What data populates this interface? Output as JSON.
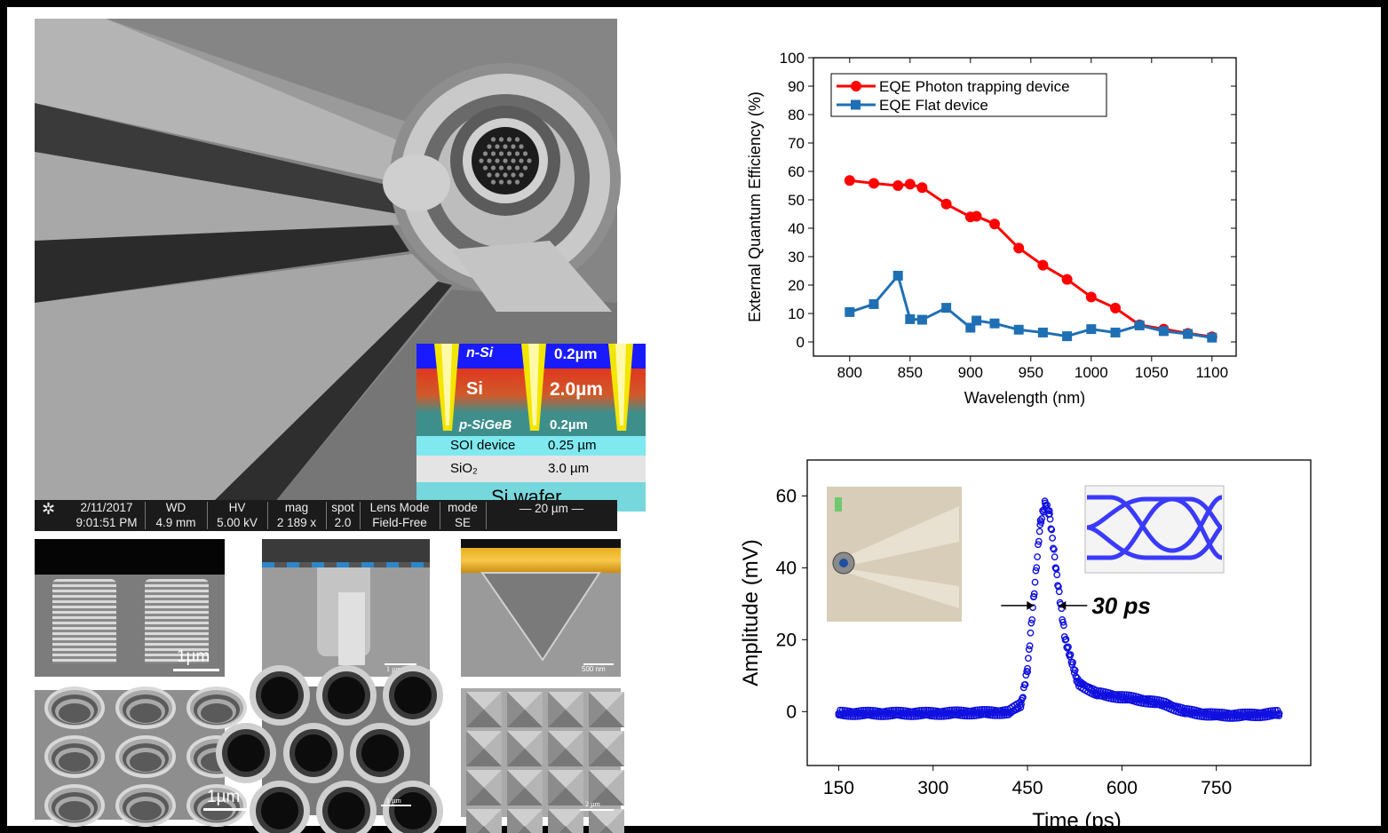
{
  "sem_main": {
    "info_date": "2/11/2017",
    "info_time": "9:01:51 PM",
    "wd_label": "WD",
    "wd_value": "4.9 mm",
    "hv_label": "HV",
    "hv_value": "5.00 kV",
    "mag_label": "mag",
    "mag_value": "2 189 x",
    "spot_label": "spot",
    "spot_value": "2.0",
    "lens_label": "Lens Mode",
    "lens_value": "Field-Free",
    "mode_label": "mode",
    "mode_value": "SE",
    "scale": "20 µm"
  },
  "layer_stack": [
    {
      "name": "n-Si",
      "thickness": "0.2µm",
      "color": "#1a1aff"
    },
    {
      "name": "Si",
      "thickness": "2.0µm",
      "color": "#d94a2a"
    },
    {
      "name": "p-SiGeB",
      "thickness": "0.2µm",
      "color": "#3e8f8c"
    },
    {
      "name": "SOI device",
      "thickness": "0.25 µm",
      "color": "#7fe9ef"
    },
    {
      "name": "SiO₂",
      "thickness": "3.0 µm",
      "color": "#e4e4e4"
    },
    {
      "name": "Si wafer",
      "thickness": "",
      "color": "#76d8dc"
    }
  ],
  "thumbnails": [
    {
      "scale": "1µm"
    },
    {
      "scale": "1 µm"
    },
    {
      "scale": "500 nm"
    },
    {
      "scale": "1µm"
    },
    {
      "scale": "1 µm"
    },
    {
      "scale": "2 µm"
    }
  ],
  "chart_data": [
    {
      "type": "line",
      "xlabel": "Wavelength (nm)",
      "ylabel": "External Quantum Efficiency (%)",
      "xlim": [
        770,
        1120
      ],
      "ylim": [
        -5,
        100
      ],
      "xticks": [
        800,
        850,
        900,
        950,
        1000,
        1050,
        1100
      ],
      "yticks": [
        0,
        10,
        20,
        30,
        40,
        50,
        60,
        70,
        80,
        90,
        100
      ],
      "legend_position": "top-left",
      "series": [
        {
          "name": "EQE Photon trapping device",
          "color": "#ff0000",
          "marker": "circle",
          "x": [
            800,
            820,
            840,
            850,
            860,
            880,
            900,
            905,
            920,
            940,
            960,
            980,
            1000,
            1020,
            1040,
            1060,
            1080,
            1100
          ],
          "y": [
            56.8,
            55.8,
            55.0,
            55.5,
            54.3,
            48.5,
            44.0,
            44.2,
            41.5,
            33.0,
            27.0,
            22.0,
            15.8,
            11.9,
            6.0,
            4.5,
            3.0,
            1.8
          ]
        },
        {
          "name": "EQE Flat device",
          "color": "#1f6fb4",
          "marker": "square",
          "x": [
            800,
            820,
            840,
            850,
            860,
            880,
            900,
            905,
            920,
            940,
            960,
            980,
            1000,
            1020,
            1040,
            1060,
            1080,
            1100
          ],
          "y": [
            10.5,
            13.3,
            23.3,
            8.0,
            7.8,
            12.0,
            5.0,
            7.5,
            6.5,
            4.3,
            3.3,
            2.0,
            4.5,
            3.3,
            5.8,
            3.8,
            2.8,
            1.5
          ]
        }
      ]
    },
    {
      "type": "scatter",
      "xlabel": "Time (ps)",
      "ylabel": "Amplitude (mV)",
      "xlim": [
        100,
        900
      ],
      "ylim": [
        -15,
        70
      ],
      "xticks": [
        150,
        300,
        450,
        600,
        750
      ],
      "yticks": [
        0,
        20,
        40,
        60
      ],
      "annotation": "30 ps",
      "series": [
        {
          "name": "",
          "color": "#1010e0",
          "marker": "open-circle",
          "x": [
            150,
            300,
            420,
            440,
            450,
            460,
            470,
            478,
            485,
            495,
            510,
            530,
            560,
            600,
            640,
            670,
            700,
            750,
            800,
            850
          ],
          "y": [
            -0.5,
            -0.5,
            -0.2,
            2,
            12,
            32,
            52,
            58,
            55,
            40,
            20,
            8,
            5,
            4,
            3,
            2,
            0,
            -1,
            -1,
            -0.5
          ]
        }
      ]
    }
  ]
}
